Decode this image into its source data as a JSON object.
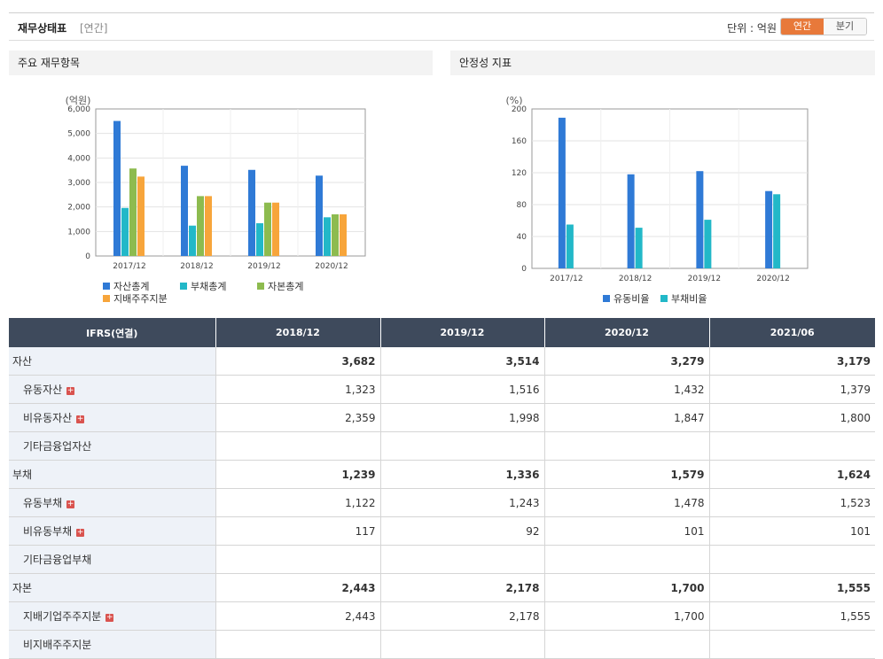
{
  "header": {
    "title": "재무상태표",
    "sub": "[연간]",
    "unit": "단위 : 억원",
    "toggle_on": "연간",
    "toggle_off": "분기"
  },
  "chart_data": [
    {
      "panel_title": "주요 재무항목",
      "type": "bar",
      "ylabel": "(억원)",
      "ylim": [
        0,
        6000
      ],
      "yticks": [
        "0",
        "1,000",
        "2,000",
        "3,000",
        "4,000",
        "5,000",
        "6,000"
      ],
      "ytick_values": [
        0,
        1000,
        2000,
        3000,
        4000,
        5000,
        6000
      ],
      "categories": [
        "2017/12",
        "2018/12",
        "2019/12",
        "2020/12"
      ],
      "series": [
        {
          "name": "자산총계",
          "color": "#2f7ad6",
          "values": [
            5510,
            3682,
            3514,
            3279
          ]
        },
        {
          "name": "부채총계",
          "color": "#22b8c8",
          "values": [
            1960,
            1239,
            1336,
            1579
          ]
        },
        {
          "name": "자본총계",
          "color": "#8dbb4f",
          "values": [
            3570,
            2443,
            2178,
            1700
          ]
        },
        {
          "name": "지배주주지분",
          "color": "#f7a53b",
          "values": [
            3240,
            2443,
            2178,
            1700
          ]
        }
      ],
      "grid": true
    },
    {
      "panel_title": "안정성 지표",
      "type": "bar",
      "ylabel": "(%)",
      "ylim": [
        0,
        200
      ],
      "yticks": [
        "0",
        "40",
        "80",
        "120",
        "160",
        "200"
      ],
      "ytick_values": [
        0,
        40,
        80,
        120,
        160,
        200
      ],
      "categories": [
        "2017/12",
        "2018/12",
        "2019/12",
        "2020/12"
      ],
      "series": [
        {
          "name": "유동비율",
          "color": "#2f7ad6",
          "values": [
            189,
            118,
            122,
            97
          ]
        },
        {
          "name": "부채비율",
          "color": "#22b8c8",
          "values": [
            55,
            51,
            61,
            93
          ]
        }
      ],
      "grid": true
    }
  ],
  "table": {
    "corner": "IFRS(연결)",
    "columns": [
      "2018/12",
      "2019/12",
      "2020/12",
      "2021/06"
    ],
    "rows": [
      {
        "label": "자산",
        "major": true,
        "plus": false,
        "values": [
          "3,682",
          "3,514",
          "3,279",
          "3,179"
        ]
      },
      {
        "label": "유동자산",
        "major": false,
        "plus": true,
        "values": [
          "1,323",
          "1,516",
          "1,432",
          "1,379"
        ]
      },
      {
        "label": "비유동자산",
        "major": false,
        "plus": true,
        "values": [
          "2,359",
          "1,998",
          "1,847",
          "1,800"
        ]
      },
      {
        "label": "기타금융업자산",
        "major": false,
        "plus": false,
        "values": [
          "",
          "",
          "",
          ""
        ]
      },
      {
        "label": "부채",
        "major": true,
        "plus": false,
        "values": [
          "1,239",
          "1,336",
          "1,579",
          "1,624"
        ]
      },
      {
        "label": "유동부채",
        "major": false,
        "plus": true,
        "values": [
          "1,122",
          "1,243",
          "1,478",
          "1,523"
        ]
      },
      {
        "label": "비유동부채",
        "major": false,
        "plus": true,
        "values": [
          "117",
          "92",
          "101",
          "101"
        ]
      },
      {
        "label": "기타금융업부채",
        "major": false,
        "plus": false,
        "values": [
          "",
          "",
          "",
          ""
        ]
      },
      {
        "label": "자본",
        "major": true,
        "plus": false,
        "values": [
          "2,443",
          "2,178",
          "1,700",
          "1,555"
        ]
      },
      {
        "label": "지배기업주주지분",
        "major": false,
        "plus": true,
        "values": [
          "2,443",
          "2,178",
          "1,700",
          "1,555"
        ]
      },
      {
        "label": "비지배주주지분",
        "major": false,
        "plus": false,
        "values": [
          "",
          "",
          "",
          ""
        ]
      }
    ],
    "plus_glyph": "+"
  }
}
